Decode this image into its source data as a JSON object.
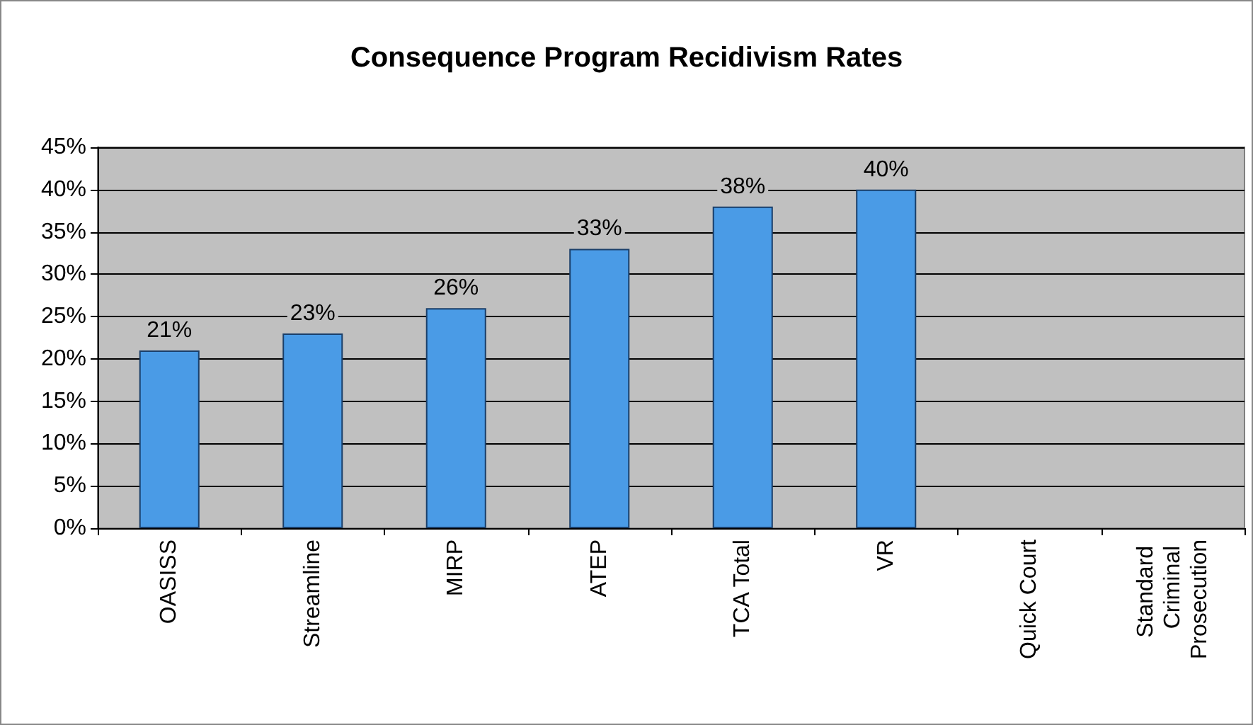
{
  "chart_data": {
    "type": "bar",
    "title": "Consequence Program Recidivism Rates",
    "categories": [
      "OASISS",
      "Streamline",
      "MIRP",
      "ATEP",
      "TCA Total",
      "VR",
      "Quick Court",
      "Standard Criminal Prosecution"
    ],
    "values": [
      21,
      23,
      26,
      33,
      38,
      40,
      null,
      null
    ],
    "value_labels": [
      "21%",
      "23%",
      "26%",
      "33%",
      "38%",
      "40%",
      null,
      null
    ],
    "color": "#4a9be6",
    "ylim": [
      0,
      45
    ],
    "yticks": [
      {
        "value": 0,
        "label": "0%"
      },
      {
        "value": 5,
        "label": "5%"
      },
      {
        "value": 10,
        "label": "10%"
      },
      {
        "value": 15,
        "label": "15%"
      },
      {
        "value": 20,
        "label": "20%"
      },
      {
        "value": 25,
        "label": "25%"
      },
      {
        "value": 30,
        "label": "30%"
      },
      {
        "value": 35,
        "label": "35%"
      },
      {
        "value": 40,
        "label": "40%"
      },
      {
        "value": 45,
        "label": "45%"
      }
    ],
    "grid": "y"
  }
}
